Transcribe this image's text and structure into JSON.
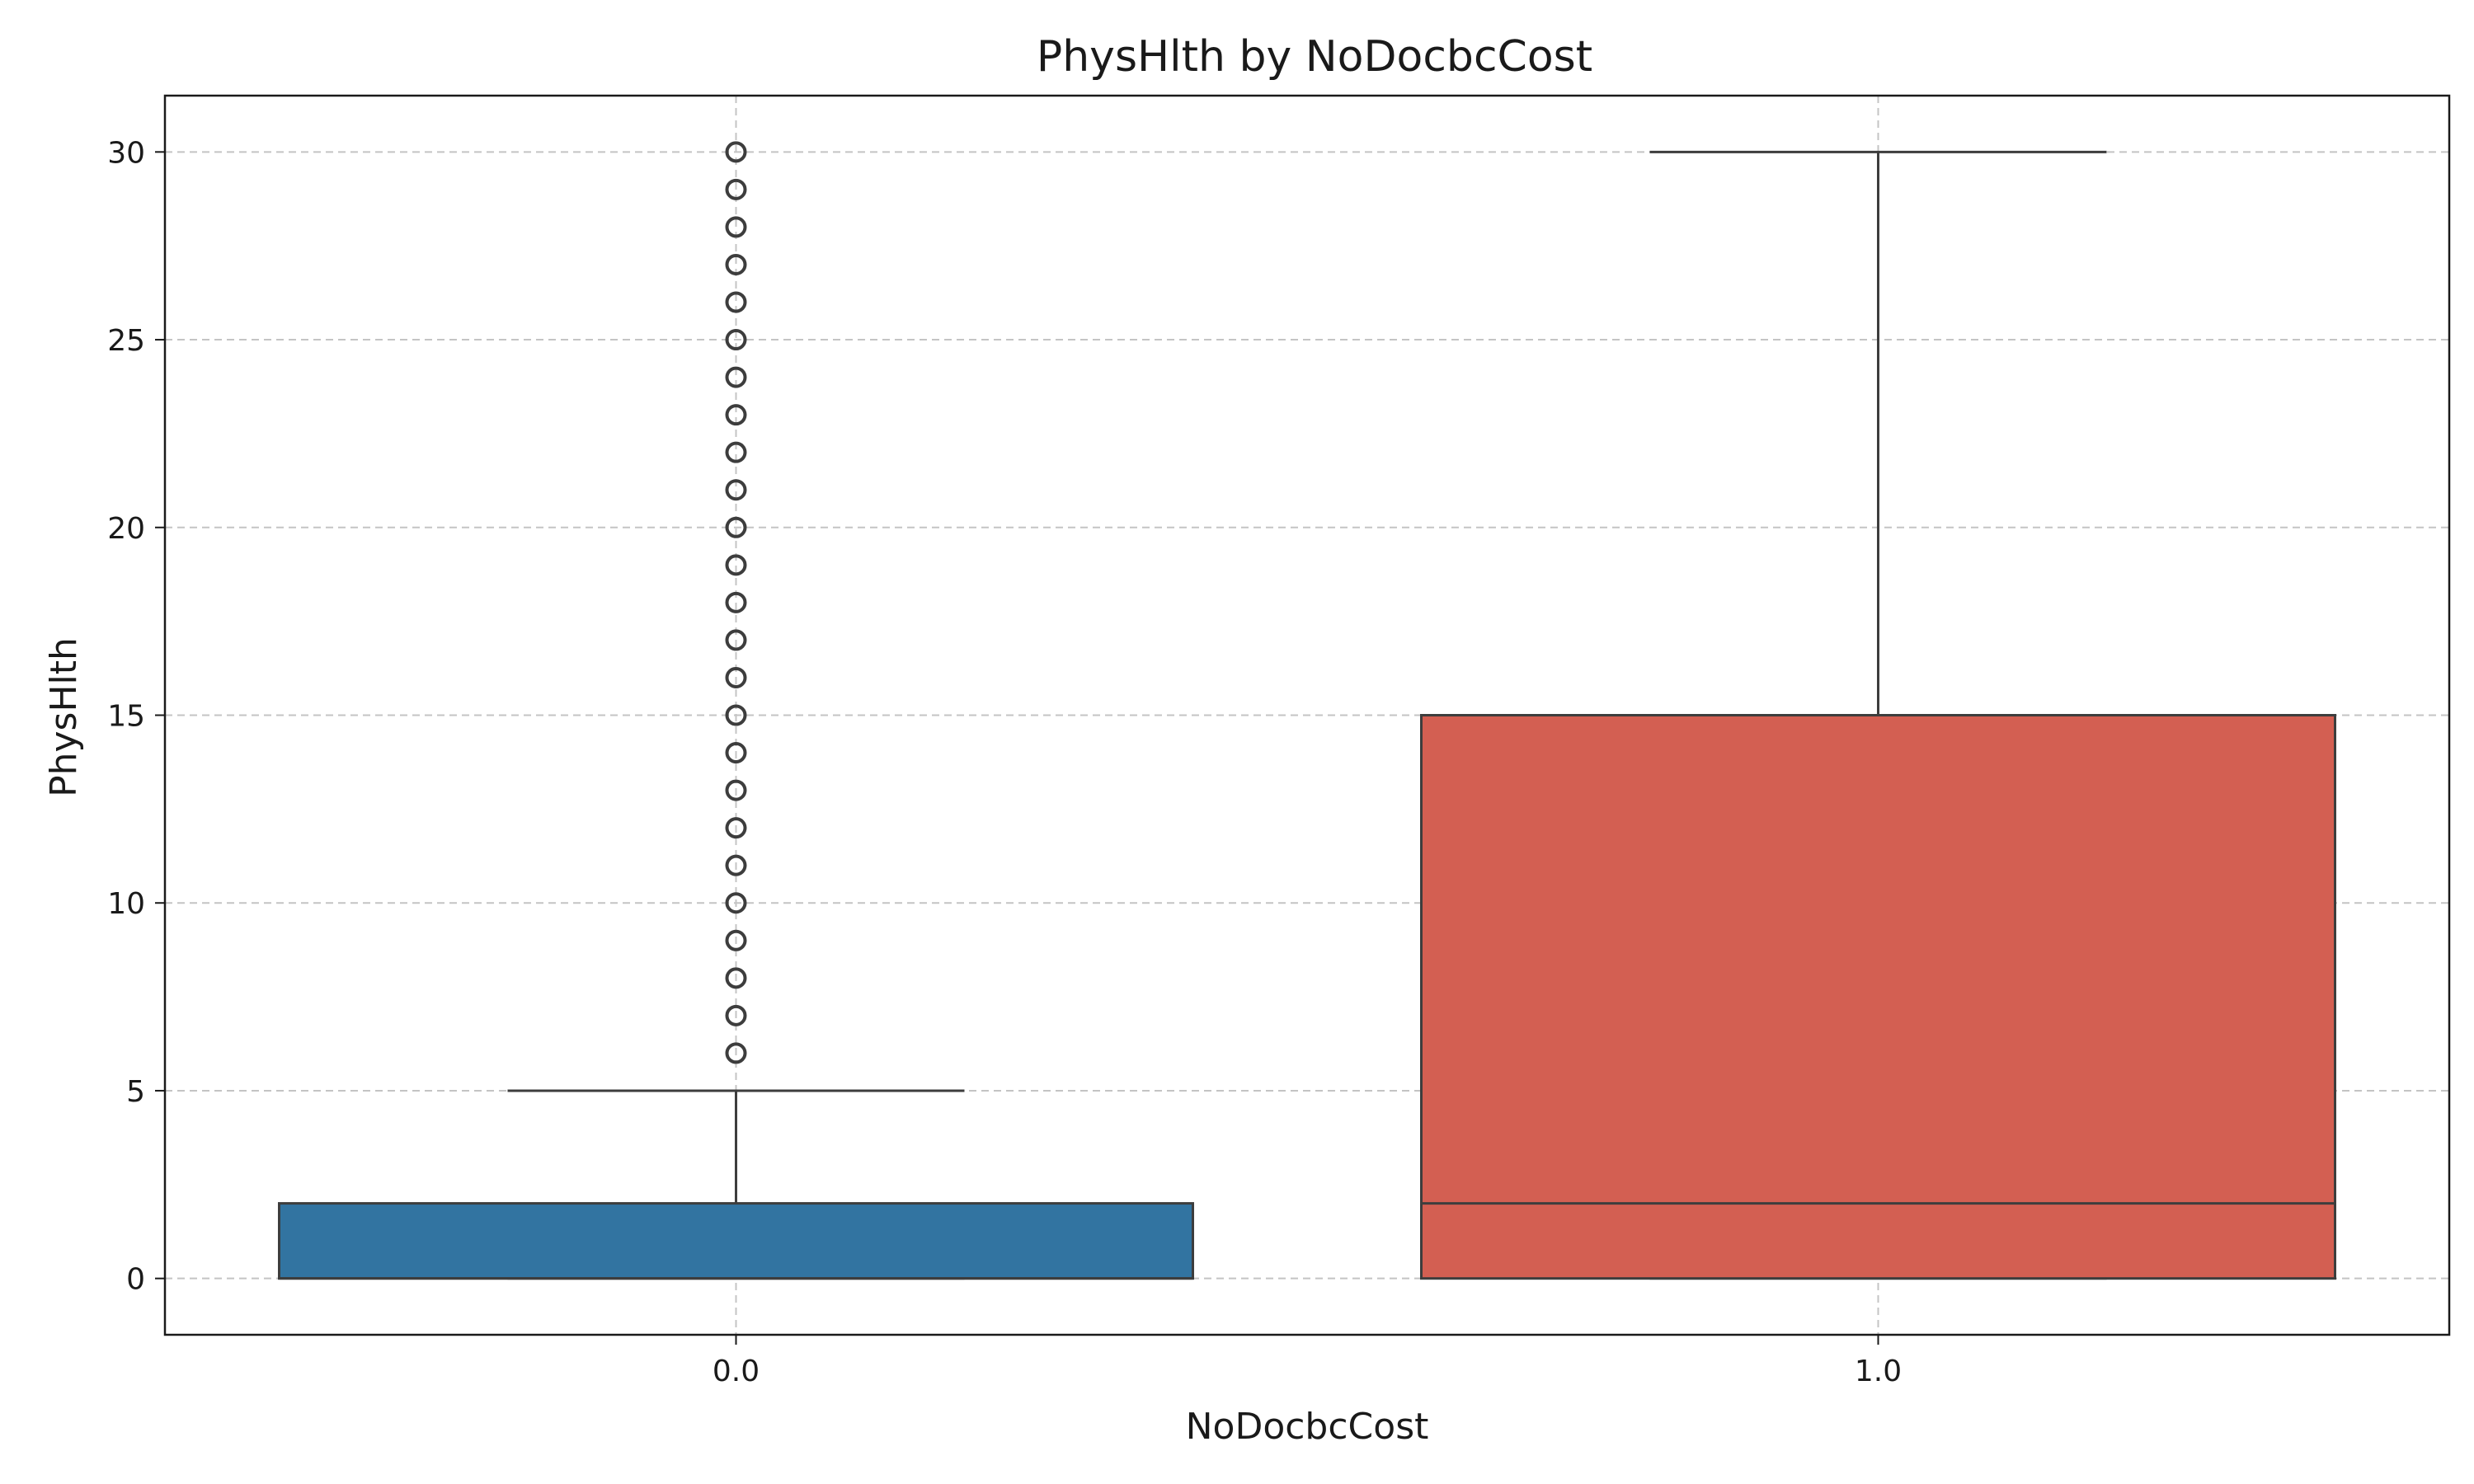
{
  "chart_data": {
    "type": "boxplot",
    "title": "PhysHlth by NoDocbcCost",
    "xlabel": "NoDocbcCost",
    "ylabel": "PhysHlth",
    "categories": [
      "0.0",
      "1.0"
    ],
    "ylim": [
      -1.5,
      31.5
    ],
    "yticks": [
      0,
      5,
      10,
      15,
      20,
      25,
      30
    ],
    "grid": true,
    "series": [
      {
        "category": "0.0",
        "color": "#3274a1",
        "min": 0,
        "q1": 0,
        "median": 0,
        "q3": 2,
        "max": 5,
        "outliers": [
          6,
          7,
          8,
          9,
          10,
          11,
          12,
          13,
          14,
          15,
          16,
          17,
          18,
          19,
          20,
          21,
          22,
          23,
          24,
          25,
          26,
          27,
          28,
          29,
          30
        ]
      },
      {
        "category": "1.0",
        "color": "#d35f52",
        "min": 0,
        "q1": 0,
        "median": 2,
        "q3": 15,
        "max": 30,
        "outliers": []
      }
    ]
  }
}
